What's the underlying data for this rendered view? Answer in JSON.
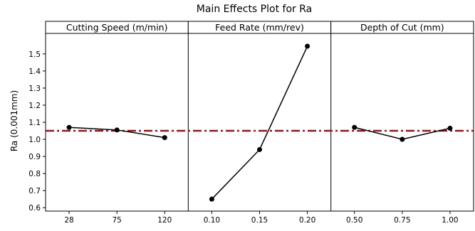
{
  "chart_data": {
    "type": "line",
    "title": "Main Effects Plot for Ra",
    "ylabel": "Ra (0.001mm)",
    "ylim": [
      0.58,
      1.62
    ],
    "yticks": [
      "0.6",
      "0.7",
      "0.8",
      "0.9",
      "1.0",
      "1.1",
      "1.2",
      "1.3",
      "1.4",
      "1.5"
    ],
    "grand_mean": 1.05,
    "reference_line_color": "#8b1a1a",
    "line_color": "#000000",
    "panels": [
      {
        "factor": "Cutting Speed (m/min)",
        "levels": [
          "28",
          "75",
          "120"
        ],
        "values": [
          1.07,
          1.055,
          1.01
        ]
      },
      {
        "factor": "Feed Rate (mm/rev)",
        "levels": [
          "0.10",
          "0.15",
          "0.20"
        ],
        "values": [
          0.65,
          0.94,
          1.545
        ]
      },
      {
        "factor": "Depth of Cut (mm)",
        "levels": [
          "0.50",
          "0.75",
          "1.00"
        ],
        "values": [
          1.07,
          1.0,
          1.065
        ]
      }
    ]
  }
}
